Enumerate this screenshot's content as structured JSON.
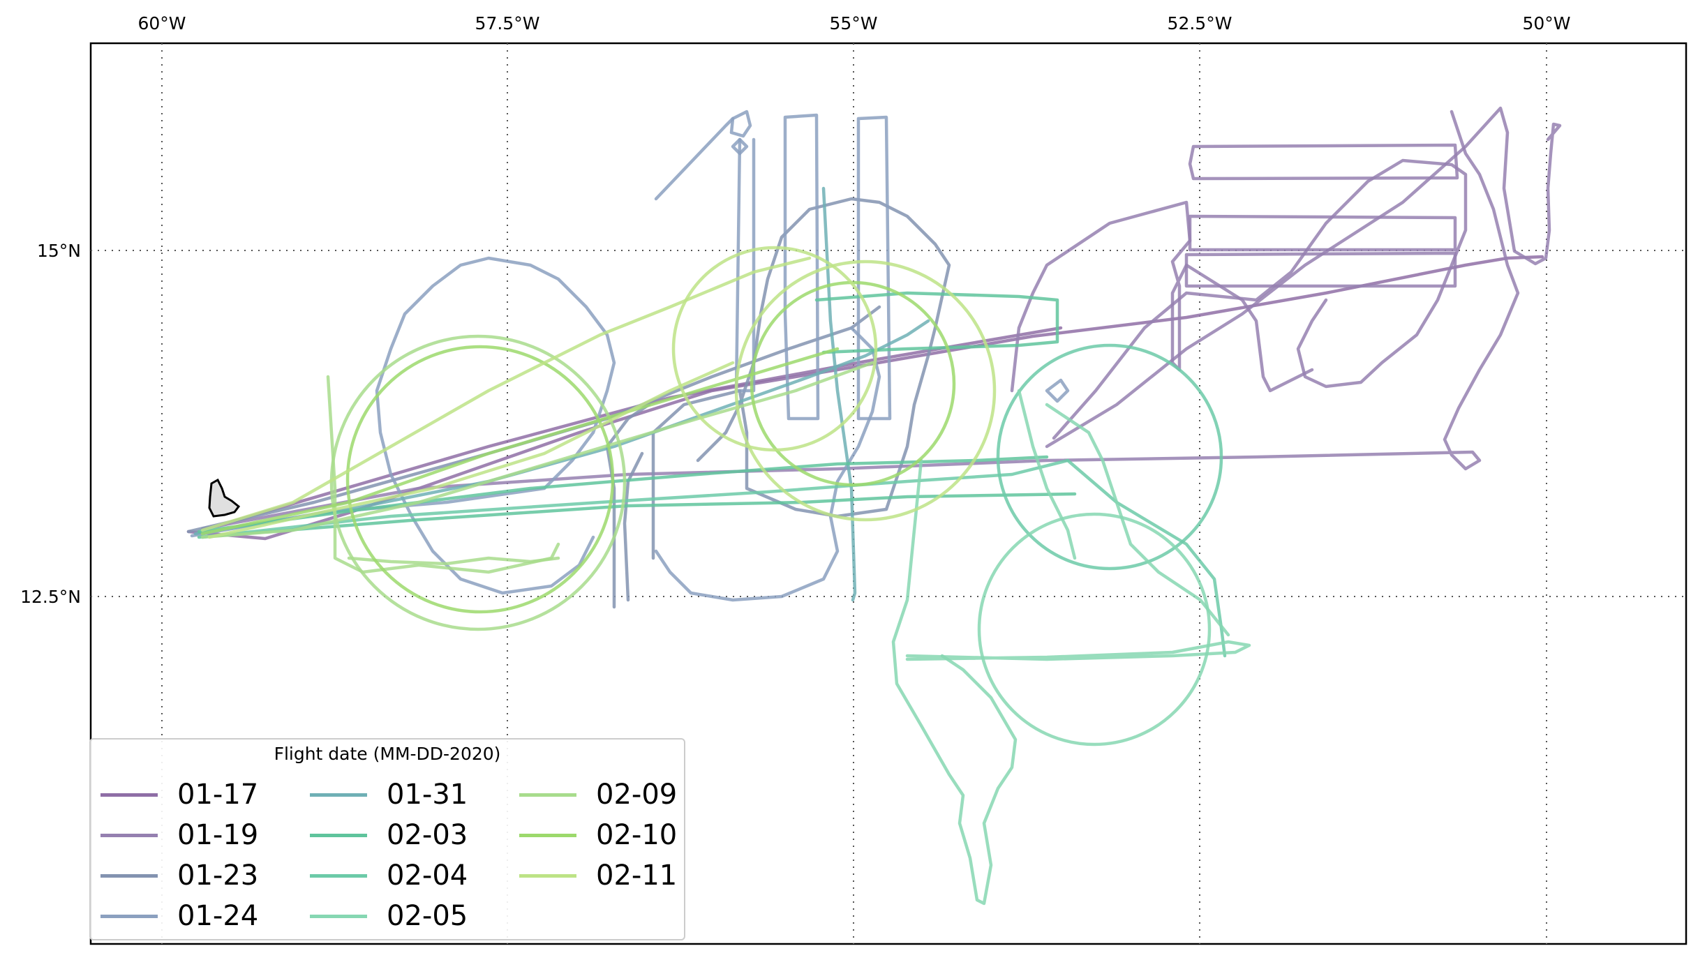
{
  "map": {
    "lon_ticks": [
      "60°W",
      "57.5°W",
      "55°W",
      "52.5°W",
      "50°W"
    ],
    "lat_ticks": [
      "15°N",
      "12.5°N"
    ],
    "island_fill": "#e0e0e0",
    "frame_color": "#000000"
  },
  "legend": {
    "title": "Flight date (MM-DD-2020)",
    "entries": [
      {
        "label": "01-17",
        "color": "#8f6ea6"
      },
      {
        "label": "01-19",
        "color": "#9580b0"
      },
      {
        "label": "01-23",
        "color": "#8393b0"
      },
      {
        "label": "01-24",
        "color": "#8ba0bf"
      },
      {
        "label": "01-31",
        "color": "#6fb0b5"
      },
      {
        "label": "02-03",
        "color": "#5fc49c"
      },
      {
        "label": "02-04",
        "color": "#6ccaa8"
      },
      {
        "label": "02-05",
        "color": "#86d7b2"
      },
      {
        "label": "02-09",
        "color": "#a8dc8c"
      },
      {
        "label": "02-10",
        "color": "#9cd96c"
      },
      {
        "label": "02-11",
        "color": "#bde386"
      }
    ]
  }
}
